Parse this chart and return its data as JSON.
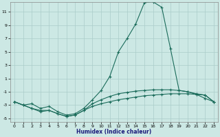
{
  "xlabel": "Humidex (Indice chaleur)",
  "bg_color": "#cce8e4",
  "grid_color": "#aaccca",
  "line_color": "#1a6b5a",
  "xlim": [
    -0.5,
    23.5
  ],
  "ylim": [
    -5.5,
    12.5
  ],
  "yticks": [
    -5,
    -3,
    -1,
    1,
    3,
    5,
    7,
    9,
    11
  ],
  "xticks": [
    0,
    1,
    2,
    3,
    4,
    5,
    6,
    7,
    8,
    9,
    10,
    11,
    12,
    13,
    14,
    15,
    16,
    17,
    18,
    19,
    20,
    21,
    22,
    23
  ],
  "line1_x": [
    0,
    1,
    2,
    3,
    4,
    5,
    6,
    7,
    8,
    9,
    10,
    11,
    12,
    13,
    14,
    15,
    16,
    17,
    18,
    19,
    20,
    21,
    22,
    23
  ],
  "line1_y": [
    -2.5,
    -3.0,
    -3.5,
    -4.0,
    -3.8,
    -4.3,
    -4.7,
    -4.5,
    -3.8,
    -3.2,
    -2.8,
    -2.5,
    -2.2,
    -2.0,
    -1.8,
    -1.6,
    -1.5,
    -1.4,
    -1.3,
    -1.3,
    -1.3,
    -1.4,
    -1.5,
    -2.5
  ],
  "line2_x": [
    0,
    1,
    2,
    3,
    4,
    5,
    6,
    7,
    8,
    9,
    10,
    11,
    12,
    13,
    14,
    15,
    16,
    17,
    18,
    19,
    20,
    21,
    22,
    23
  ],
  "line2_y": [
    -2.5,
    -3.0,
    -3.5,
    -3.8,
    -3.8,
    -4.3,
    -4.7,
    -4.5,
    -3.8,
    -2.8,
    -2.2,
    -1.7,
    -1.3,
    -1.1,
    -0.9,
    -0.8,
    -0.7,
    -0.7,
    -0.7,
    -0.8,
    -1.0,
    -1.3,
    -1.5,
    -2.5
  ],
  "line3_x": [
    0,
    1,
    2,
    3,
    4,
    5,
    6,
    7,
    8,
    9,
    10,
    11,
    12,
    13,
    14,
    15,
    16,
    17,
    18,
    19,
    20,
    21,
    22,
    23
  ],
  "line3_y": [
    -2.5,
    -3.0,
    -2.8,
    -3.5,
    -3.2,
    -4.0,
    -4.5,
    -4.3,
    -3.5,
    -2.2,
    -0.8,
    1.3,
    5.0,
    7.0,
    9.2,
    12.4,
    12.5,
    11.7,
    5.5,
    -0.8,
    -1.0,
    -1.4,
    -2.0,
    -2.5
  ]
}
